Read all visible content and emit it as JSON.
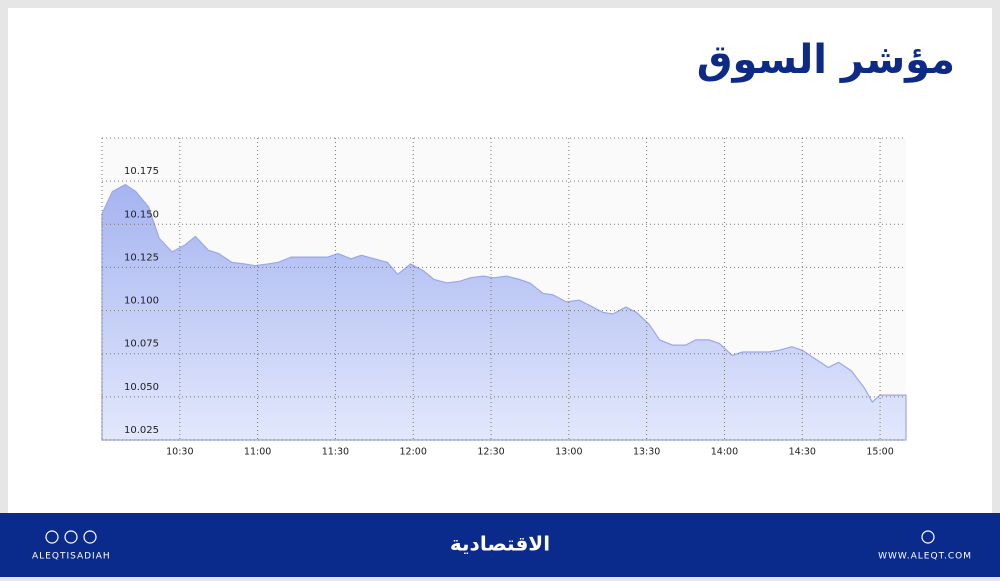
{
  "chart_data": {
    "type": "area",
    "title": "مؤشر السوق",
    "x": [
      600,
      604,
      609,
      613,
      618,
      622,
      627,
      632,
      636,
      641,
      645,
      650,
      655,
      659,
      664,
      668,
      673,
      678,
      682,
      687,
      691,
      696,
      700,
      705,
      710,
      714,
      719,
      724,
      728,
      733,
      738,
      742,
      747,
      751,
      756,
      761,
      765,
      770,
      774,
      779,
      784,
      788,
      793,
      797,
      802,
      806,
      811,
      815,
      820,
      825,
      829,
      834,
      838,
      843,
      847,
      852,
      857,
      861,
      866,
      870,
      875,
      880,
      884,
      889,
      894,
      897,
      900,
      910
    ],
    "values": [
      10.156,
      10.169,
      10.173,
      10.169,
      10.16,
      10.142,
      10.134,
      10.138,
      10.143,
      10.135,
      10.133,
      10.128,
      10.127,
      10.126,
      10.127,
      10.128,
      10.131,
      10.131,
      10.131,
      10.131,
      10.133,
      10.13,
      10.132,
      10.13,
      10.128,
      10.121,
      10.127,
      10.123,
      10.118,
      10.116,
      10.117,
      10.119,
      10.12,
      10.119,
      10.12,
      10.118,
      10.116,
      10.11,
      10.109,
      10.105,
      10.106,
      10.103,
      10.099,
      10.098,
      10.102,
      10.099,
      10.092,
      10.083,
      10.08,
      10.08,
      10.083,
      10.083,
      10.081,
      10.074,
      10.076,
      10.076,
      10.076,
      10.077,
      10.079,
      10.077,
      10.072,
      10.067,
      10.07,
      10.065,
      10.055,
      10.047,
      10.051,
      10.051
    ],
    "color": "#9aa8e8",
    "xlim": [
      600,
      910
    ],
    "xticks": [
      {
        "value": 630,
        "label": "10:30"
      },
      {
        "value": 660,
        "label": "11:00"
      },
      {
        "value": 690,
        "label": "11:30"
      },
      {
        "value": 720,
        "label": "12:00"
      },
      {
        "value": 750,
        "label": "12:30"
      },
      {
        "value": 780,
        "label": "13:00"
      },
      {
        "value": 810,
        "label": "13:30"
      },
      {
        "value": 840,
        "label": "14:00"
      },
      {
        "value": 870,
        "label": "14:30"
      },
      {
        "value": 900,
        "label": "15:00"
      }
    ],
    "ylim": [
      10.025,
      10.2
    ],
    "yticks": [
      10.025,
      {
        "value": 10.05,
        "label": "10.050"
      },
      10.075,
      {
        "value": 10.1,
        "label": "10.100"
      },
      10.125,
      {
        "value": 10.15,
        "label": "10.150"
      },
      10.175
    ],
    "grid": true
  },
  "footer": {
    "left": "ALEQTISADIAH",
    "logo": "الاقتصادية",
    "right": "WWW.ALEQT.COM"
  }
}
